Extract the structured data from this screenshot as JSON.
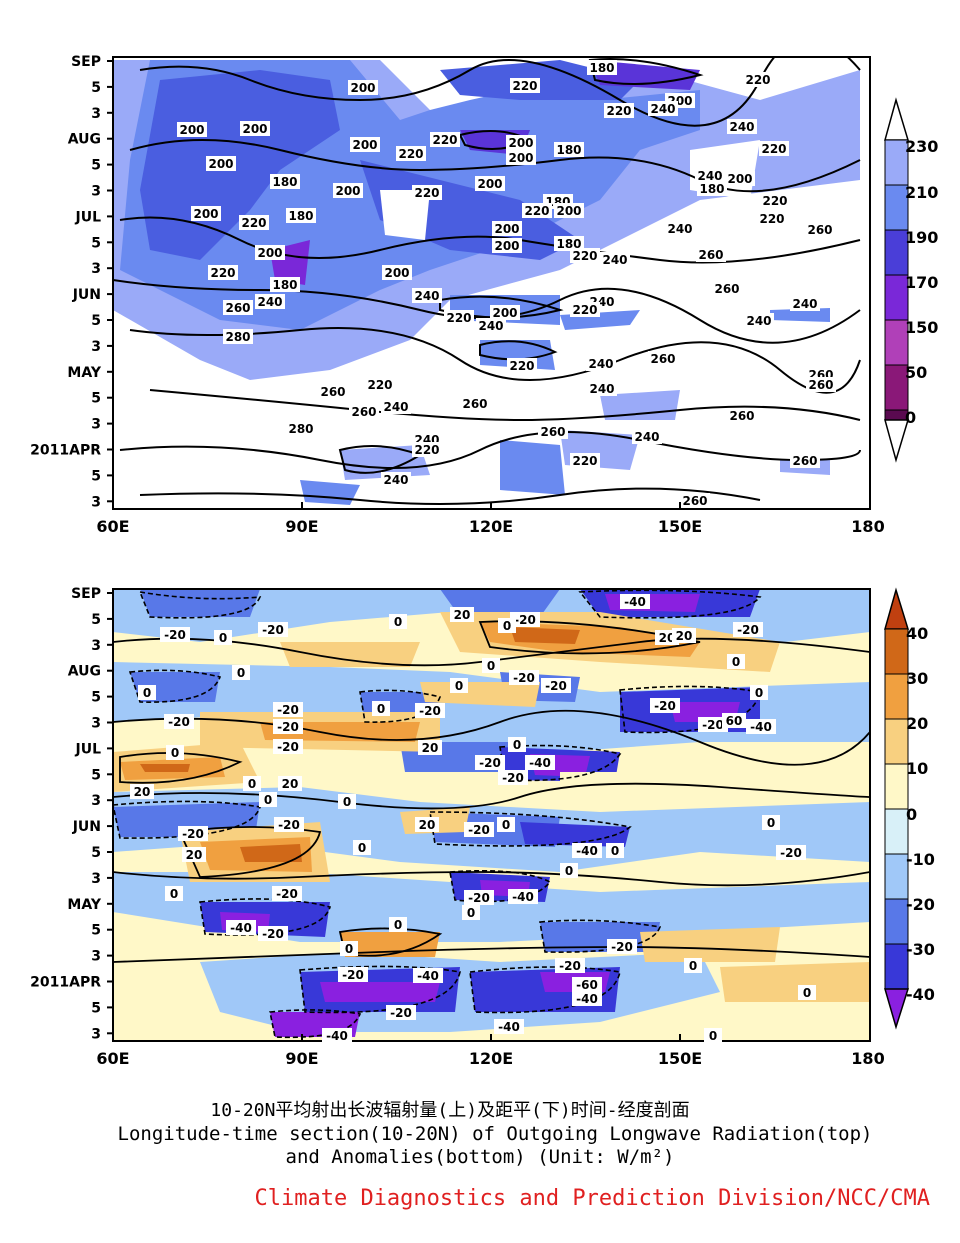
{
  "charts": {
    "top": {
      "y_ticks": [
        "SEP",
        "5",
        "3",
        "AUG",
        "5",
        "3",
        "JUL",
        "5",
        "3",
        "JUN",
        "5",
        "3",
        "MAY",
        "5",
        "3",
        "2011APR",
        "5",
        "3"
      ],
      "x_ticks": [
        "60E",
        "90E",
        "120E",
        "150E",
        "180"
      ],
      "colorbar_labels": [
        "230",
        "210",
        "190",
        "170",
        "150",
        "50",
        "0"
      ],
      "contour_labels": [
        "180",
        "200",
        "220",
        "240",
        "260",
        "280"
      ]
    },
    "bottom": {
      "y_ticks": [
        "SEP",
        "5",
        "3",
        "AUG",
        "5",
        "3",
        "JUL",
        "5",
        "3",
        "JUN",
        "5",
        "3",
        "MAY",
        "5",
        "3",
        "2011APR",
        "5",
        "3"
      ],
      "x_ticks": [
        "60E",
        "90E",
        "120E",
        "150E",
        "180"
      ],
      "colorbar_labels": [
        "40",
        "30",
        "20",
        "10",
        "0",
        "-10",
        "-20",
        "-30",
        "-40"
      ],
      "contour_labels": [
        "-60",
        "-40",
        "-20",
        "0",
        "20",
        "60"
      ]
    }
  },
  "chart_data": [
    {
      "type": "heatmap",
      "x_ticks": [
        "60E",
        "90E",
        "120E",
        "150E",
        "180"
      ],
      "xlim": [
        60,
        180
      ],
      "y_ticks": [
        "SEP",
        "5",
        "3",
        "AUG",
        "5",
        "3",
        "JUL",
        "5",
        "3",
        "JUN",
        "5",
        "3",
        "MAY",
        "5",
        "3",
        "2011APR",
        "5",
        "3"
      ],
      "colorbar_levels": [
        0,
        50,
        150,
        170,
        190,
        210,
        230
      ],
      "colorbar_colors": [
        "#5a0a50",
        "#8a1878",
        "#b040b8",
        "#7a28d8",
        "#4a3ed8",
        "#4a6ee8",
        "#9aaaf8"
      ],
      "contour_levels": [
        180,
        200,
        220,
        240,
        260,
        280
      ]
    },
    {
      "type": "heatmap",
      "x_ticks": [
        "60E",
        "90E",
        "120E",
        "150E",
        "180"
      ],
      "xlim": [
        60,
        180
      ],
      "y_ticks": [
        "SEP",
        "5",
        "3",
        "AUG",
        "5",
        "3",
        "JUL",
        "5",
        "3",
        "JUN",
        "5",
        "3",
        "MAY",
        "5",
        "3",
        "2011APR",
        "5",
        "3"
      ],
      "colorbar_levels": [
        -40,
        -30,
        -20,
        -10,
        0,
        10,
        20,
        30,
        40
      ],
      "colorbar_colors": [
        "#8a20e0",
        "#3838d8",
        "#5878e8",
        "#a0c8f8",
        "#d8f0f8",
        "#fff8c8",
        "#f8d080",
        "#f0a040",
        "#d06818",
        "#c04010"
      ],
      "contour_levels": [
        -60,
        -40,
        -20,
        0,
        20,
        60
      ]
    }
  ],
  "caption": {
    "line1": "10-20N平均射出长波辐射量(上)及距平(下)时间-经度剖面",
    "line2": "Longitude-time section(10-20N) of Outgoing Longwave Radiation(top)",
    "line3": "and Anomalies(bottom) (Unit: W/m²)"
  },
  "credit": "Climate Diagnostics and Prediction Division/NCC/CMA"
}
